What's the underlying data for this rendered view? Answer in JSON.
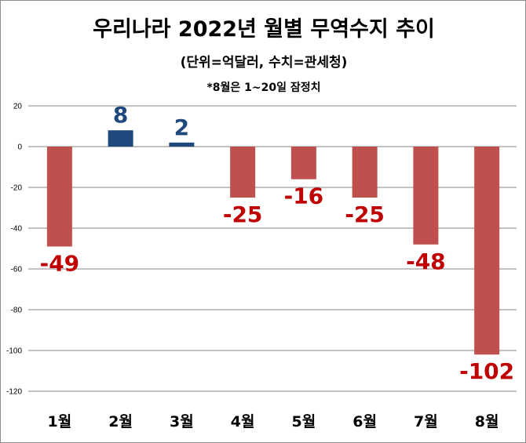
{
  "title": "우리나라 2022년 월별 무역수지 추이",
  "subtitle": "(단위=억달러, 수치=관세청)",
  "note": "*8월은 1~20일 잠정치",
  "colors": {
    "positive_bar": "#1f497d",
    "negative_bar": "#c0504d",
    "positive_label": "#1f497d",
    "negative_label": "#c00000",
    "gridline": "#868686"
  },
  "chart_data": {
    "type": "bar",
    "title": "우리나라 2022년 월별 무역수지 추이",
    "subtitle": "(단위=억달러, 수치=관세청)",
    "annotation": "*8월은 1~20일 잠정치",
    "categories": [
      "1월",
      "2월",
      "3월",
      "4월",
      "5월",
      "6월",
      "7월",
      "8월"
    ],
    "values": [
      -49,
      8,
      2,
      -25,
      -16,
      -25,
      -48,
      -102
    ],
    "data_labels": [
      "-49",
      "8",
      "2",
      "-25",
      "-16",
      "-25",
      "-48",
      "-102"
    ],
    "y_ticks": [
      "20",
      "0",
      "-20",
      "-40",
      "-60",
      "-80",
      "-100",
      "-120"
    ],
    "ylim": [
      -120,
      20
    ],
    "grid": true,
    "legend": "none",
    "xlabel": "",
    "ylabel": ""
  }
}
